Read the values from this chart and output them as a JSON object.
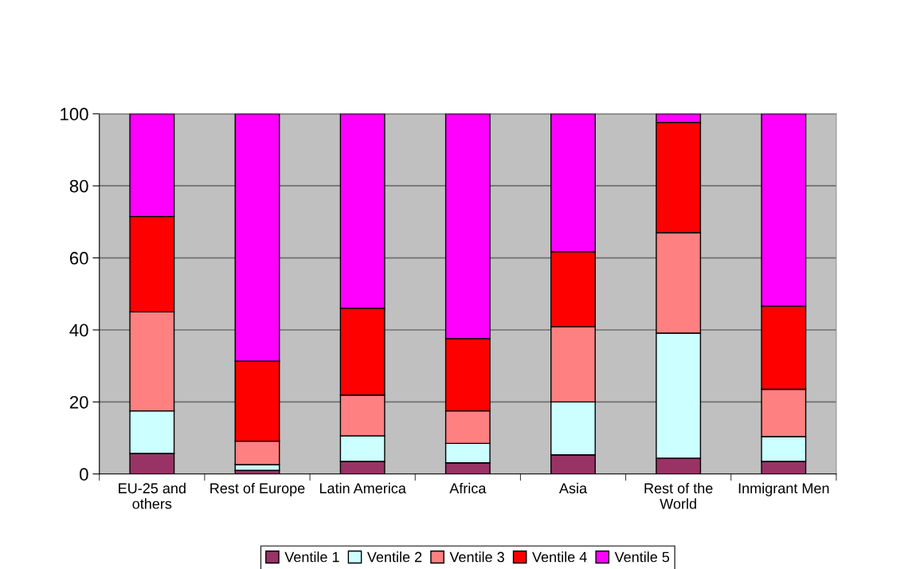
{
  "chart_data": {
    "type": "bar",
    "stacked": true,
    "categories": [
      "EU-25 and\nothers",
      "Rest of Europe",
      "Latin America",
      "Africa",
      "Asia",
      "Rest of the\nWorld",
      "Inmigrant Men"
    ],
    "series": [
      {
        "name": "Ventile 1",
        "color": "#993366",
        "values": [
          5.7,
          1.0,
          3.5,
          3.1,
          5.3,
          4.4,
          3.5
        ]
      },
      {
        "name": "Ventile 2",
        "color": "#ccffff",
        "values": [
          11.8,
          1.6,
          7.1,
          5.4,
          14.7,
          34.7,
          6.9
        ]
      },
      {
        "name": "Ventile 3",
        "color": "#ff8080",
        "values": [
          27.5,
          6.5,
          11.3,
          9.0,
          20.9,
          27.9,
          13.1
        ]
      },
      {
        "name": "Ventile 4",
        "color": "#ff0000",
        "values": [
          26.5,
          22.2,
          24.1,
          20.1,
          20.8,
          30.6,
          23.1
        ]
      },
      {
        "name": "Ventile 5",
        "color": "#ff00ff",
        "values": [
          28.5,
          68.7,
          54.0,
          62.4,
          38.3,
          2.4,
          53.4
        ]
      }
    ],
    "ylim": [
      0,
      100
    ],
    "yticks": [
      0,
      20,
      40,
      60,
      80,
      100
    ],
    "grid": "y",
    "legend": "bottom"
  }
}
